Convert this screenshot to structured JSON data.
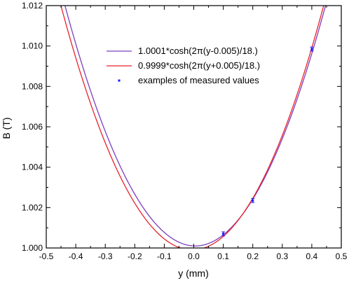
{
  "chart_data": {
    "type": "line",
    "xlabel": "y (mm)",
    "ylabel": "B  (T)",
    "xlim": [
      -0.5,
      0.5
    ],
    "ylim": [
      1.0,
      1.012
    ],
    "x_ticks": [
      "-0.5",
      "-0.4",
      "-0.3",
      "-0.2",
      "-0.1",
      "0.0",
      "0.1",
      "0.2",
      "0.3",
      "0.4",
      "0.5"
    ],
    "y_ticks": [
      "1.000",
      "1.002",
      "1.004",
      "1.006",
      "1.008",
      "1.010",
      "1.012"
    ],
    "legend_position": "top-right",
    "series": [
      {
        "name": "1.0001*cosh(2π(y-0.005)/18.)",
        "kind": "line",
        "color": "#7b3fbf",
        "function": {
          "amplitude": 1.0001,
          "shift": -0.005,
          "period": 18.0
        },
        "x_range": [
          -0.5,
          0.5
        ]
      },
      {
        "name": "0.9999*cosh(2π(y+0.005)/18.)",
        "kind": "line",
        "color": "#e8222a",
        "function": {
          "amplitude": 0.9999,
          "shift": 0.005,
          "period": 18.0
        },
        "x_range": [
          -0.5,
          0.5
        ]
      },
      {
        "name": "examples of measured values",
        "kind": "scatter",
        "color": "#1a1aff",
        "x": [
          0.1,
          0.2,
          0.4
        ],
        "y": [
          1.0007,
          1.00235,
          1.00985
        ],
        "yerr": [
          0.0001,
          0.0001,
          0.0001
        ]
      }
    ],
    "grid": false
  }
}
